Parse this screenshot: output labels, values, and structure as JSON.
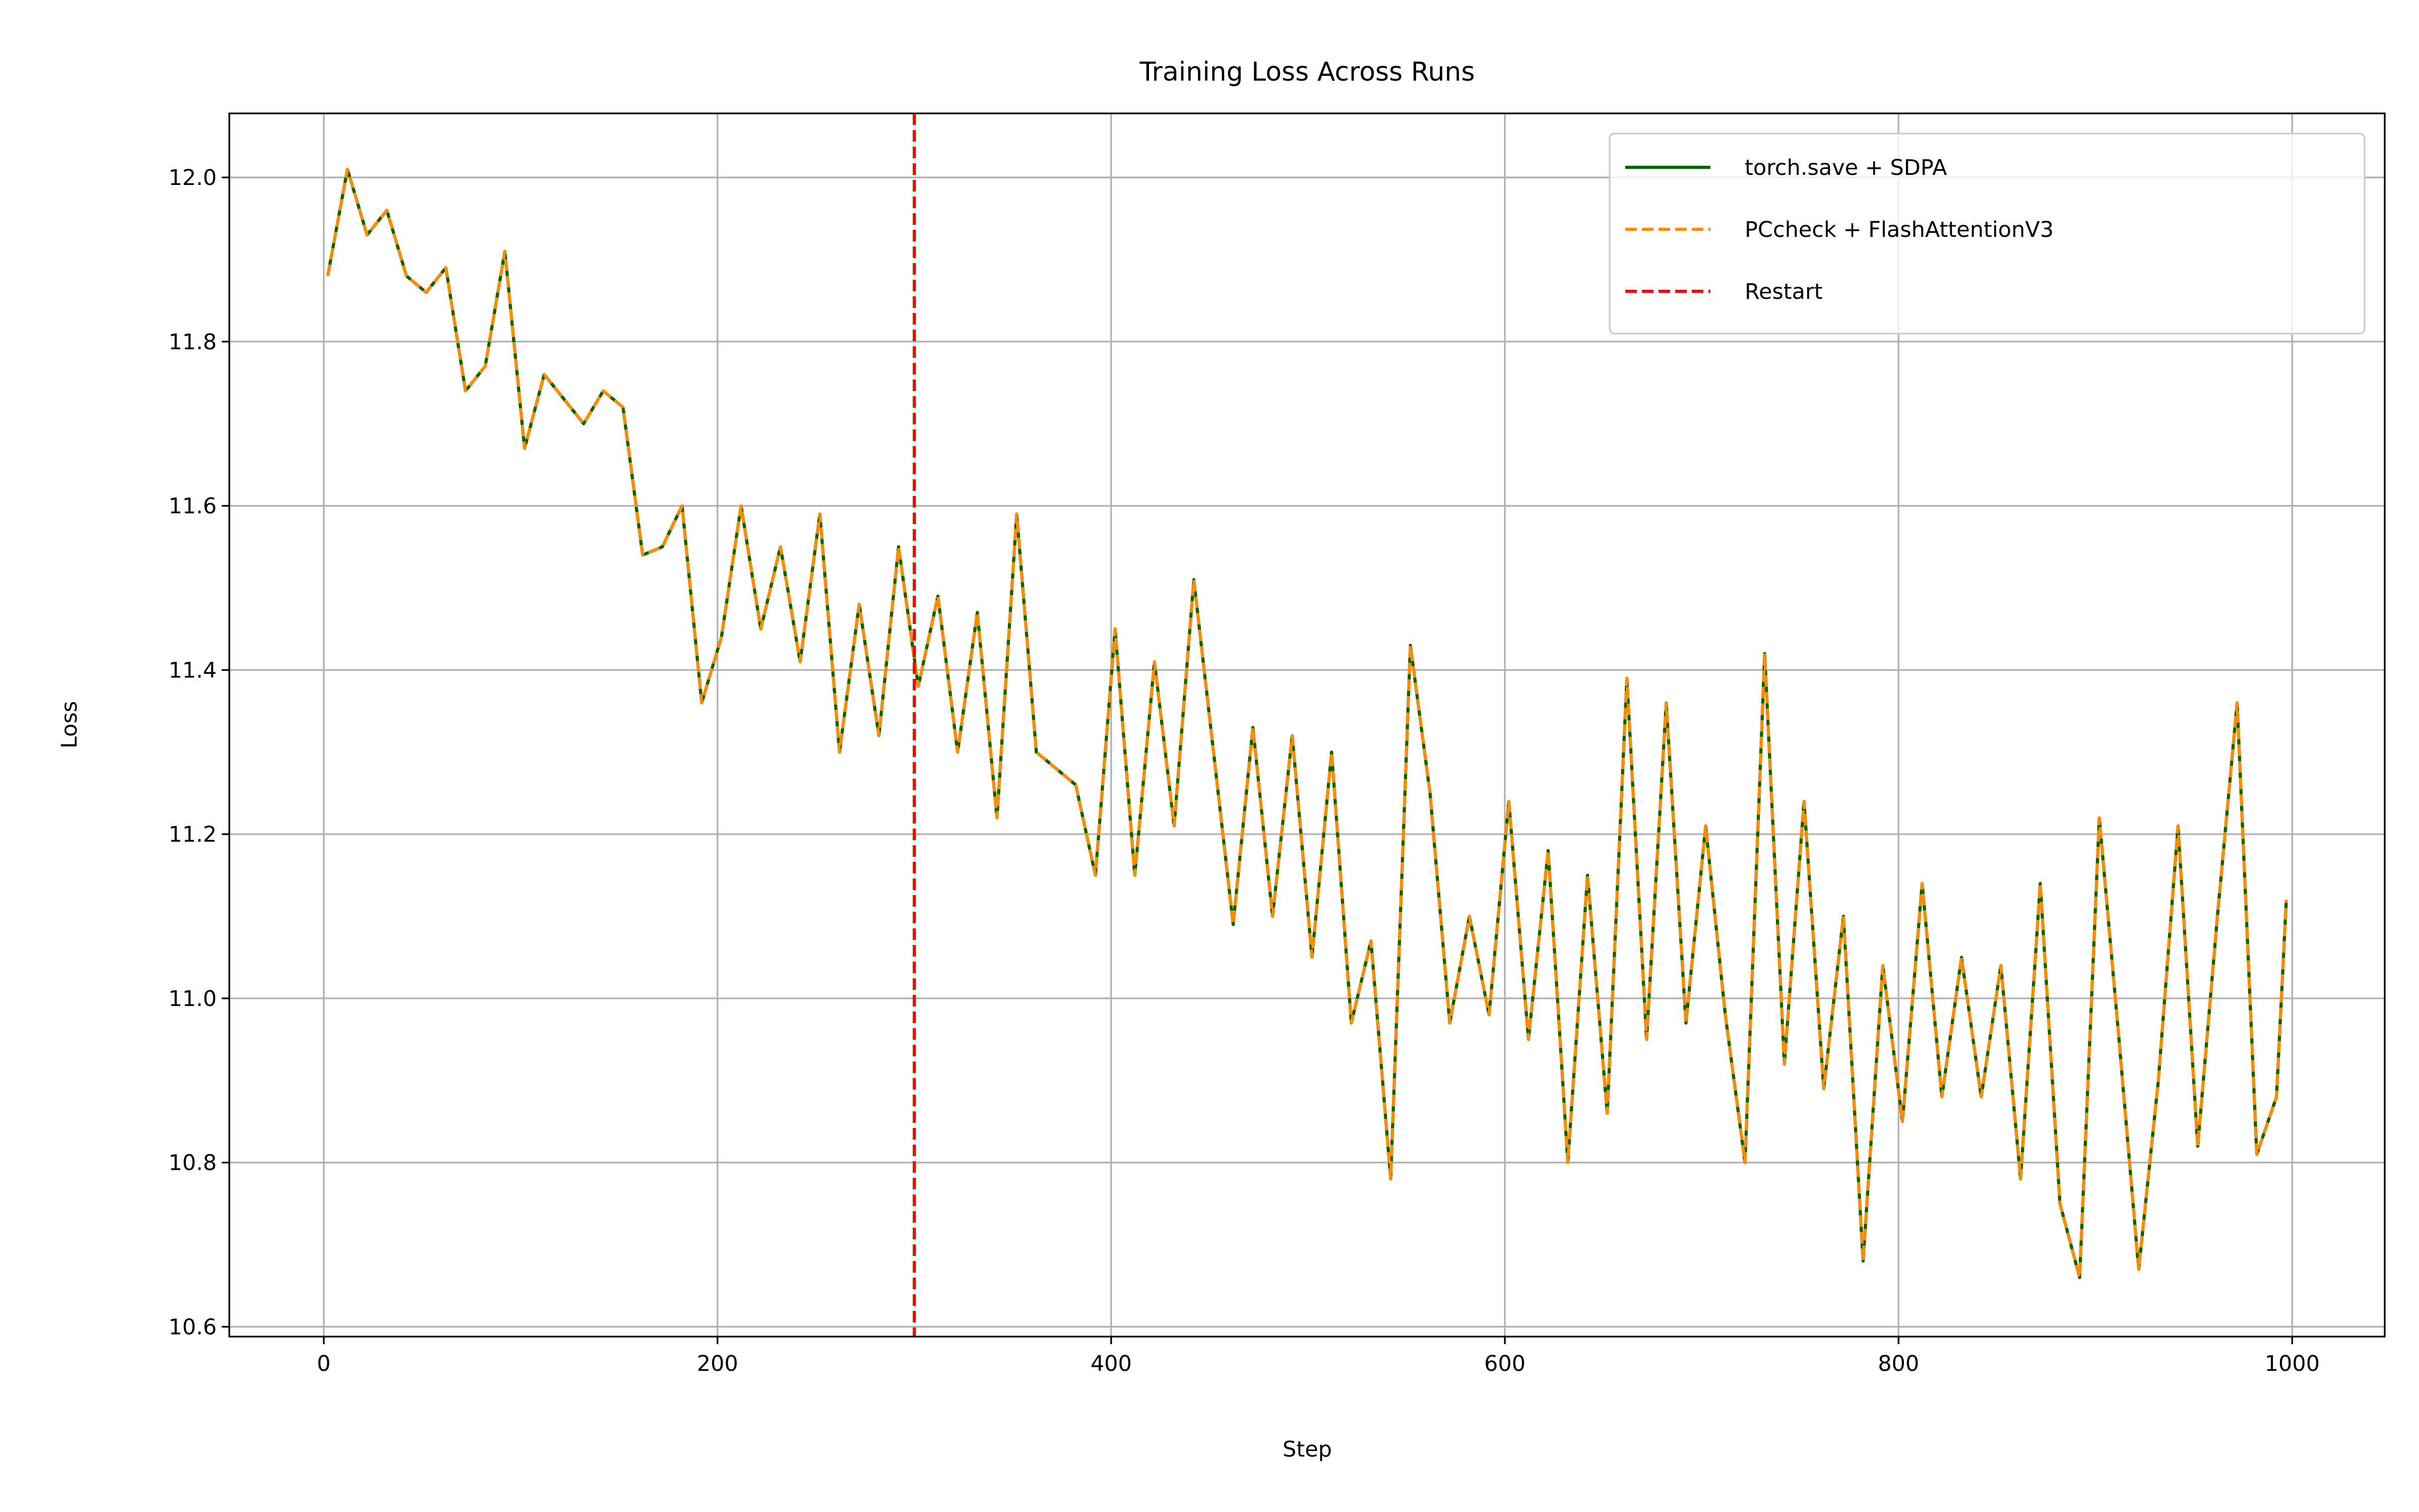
{
  "chart_data": {
    "type": "line",
    "title": "Training Loss Across Runs",
    "xlabel": "Step",
    "ylabel": "Loss",
    "x": [
      2,
      12,
      22,
      32,
      42,
      52,
      62,
      72,
      82,
      92,
      102,
      112,
      122,
      132,
      142,
      152,
      162,
      172,
      182,
      192,
      202,
      212,
      222,
      232,
      242,
      252,
      262,
      272,
      282,
      292,
      302,
      312,
      322,
      332,
      342,
      352,
      362,
      372,
      382,
      392,
      402,
      412,
      422,
      432,
      442,
      452,
      462,
      472,
      482,
      492,
      502,
      512,
      522,
      532,
      542,
      552,
      562,
      572,
      582,
      592,
      602,
      612,
      622,
      632,
      642,
      652,
      662,
      672,
      682,
      692,
      702,
      712,
      722,
      732,
      742,
      752,
      762,
      772,
      782,
      792,
      802,
      812,
      822,
      832,
      842,
      852,
      862,
      872,
      882,
      892,
      902,
      912,
      922,
      932,
      942,
      952,
      962,
      972,
      982,
      992,
      997
    ],
    "series": [
      {
        "name": "torch.save + SDPA",
        "color": "#006400",
        "dash": false,
        "values": [
          11.88,
          12.01,
          11.93,
          11.96,
          11.88,
          11.86,
          11.89,
          11.74,
          11.77,
          11.91,
          11.67,
          11.76,
          11.73,
          11.7,
          11.74,
          11.72,
          11.54,
          11.55,
          11.6,
          11.36,
          11.44,
          11.6,
          11.45,
          11.55,
          11.41,
          11.59,
          11.3,
          11.48,
          11.32,
          11.55,
          11.38,
          11.49,
          11.3,
          11.47,
          11.22,
          11.59,
          11.3,
          11.28,
          11.26,
          11.15,
          11.45,
          11.15,
          11.41,
          11.21,
          11.51,
          11.3,
          11.09,
          11.33,
          11.1,
          11.32,
          11.05,
          11.3,
          10.97,
          11.07,
          10.78,
          11.43,
          11.25,
          10.97,
          11.1,
          10.98,
          11.24,
          10.95,
          11.18,
          10.8,
          11.15,
          10.86,
          11.39,
          10.95,
          11.36,
          10.97,
          11.21,
          10.98,
          10.8,
          11.42,
          10.92,
          11.24,
          10.89,
          11.1,
          10.68,
          11.04,
          10.85,
          11.14,
          10.88,
          11.05,
          10.88,
          11.04,
          10.78,
          11.14,
          10.75,
          10.66,
          11.22,
          10.95,
          10.67,
          10.9,
          11.21,
          10.82,
          11.1,
          11.36,
          10.81,
          10.88,
          11.12
        ]
      },
      {
        "name": "PCcheck + FlashAttentionV3",
        "color": "#ff8c00",
        "dash": true,
        "values": [
          11.88,
          12.01,
          11.93,
          11.96,
          11.88,
          11.86,
          11.89,
          11.74,
          11.77,
          11.91,
          11.67,
          11.76,
          11.73,
          11.7,
          11.74,
          11.72,
          11.54,
          11.55,
          11.6,
          11.36,
          11.44,
          11.6,
          11.45,
          11.55,
          11.41,
          11.59,
          11.3,
          11.48,
          11.32,
          11.55,
          11.38,
          11.49,
          11.3,
          11.47,
          11.22,
          11.59,
          11.3,
          11.28,
          11.26,
          11.15,
          11.45,
          11.15,
          11.41,
          11.21,
          11.51,
          11.3,
          11.09,
          11.33,
          11.1,
          11.32,
          11.05,
          11.3,
          10.97,
          11.07,
          10.78,
          11.43,
          11.25,
          10.97,
          11.1,
          10.98,
          11.24,
          10.95,
          11.18,
          10.8,
          11.15,
          10.86,
          11.39,
          10.95,
          11.36,
          10.97,
          11.21,
          10.98,
          10.8,
          11.42,
          10.92,
          11.24,
          10.89,
          11.1,
          10.68,
          11.04,
          10.85,
          11.14,
          10.88,
          11.05,
          10.88,
          11.04,
          10.78,
          11.14,
          10.75,
          10.66,
          11.22,
          10.95,
          10.67,
          10.9,
          11.21,
          10.82,
          11.1,
          11.36,
          10.81,
          10.88,
          11.12
        ]
      }
    ],
    "restart": {
      "name": "Restart",
      "x": 300,
      "color": "#ff0000"
    },
    "xlim": [
      -48,
      1047
    ],
    "xticks": [
      0,
      200,
      400,
      600,
      800,
      1000
    ],
    "ylim": [
      10.588,
      12.078
    ],
    "yticks": [
      10.6,
      10.8,
      {
        "value": 11,
        "label": "11.0"
      },
      11.2,
      11.4,
      11.6,
      11.8,
      {
        "value": 12,
        "label": "12.0"
      }
    ],
    "grid": true,
    "legend": "upper right"
  }
}
